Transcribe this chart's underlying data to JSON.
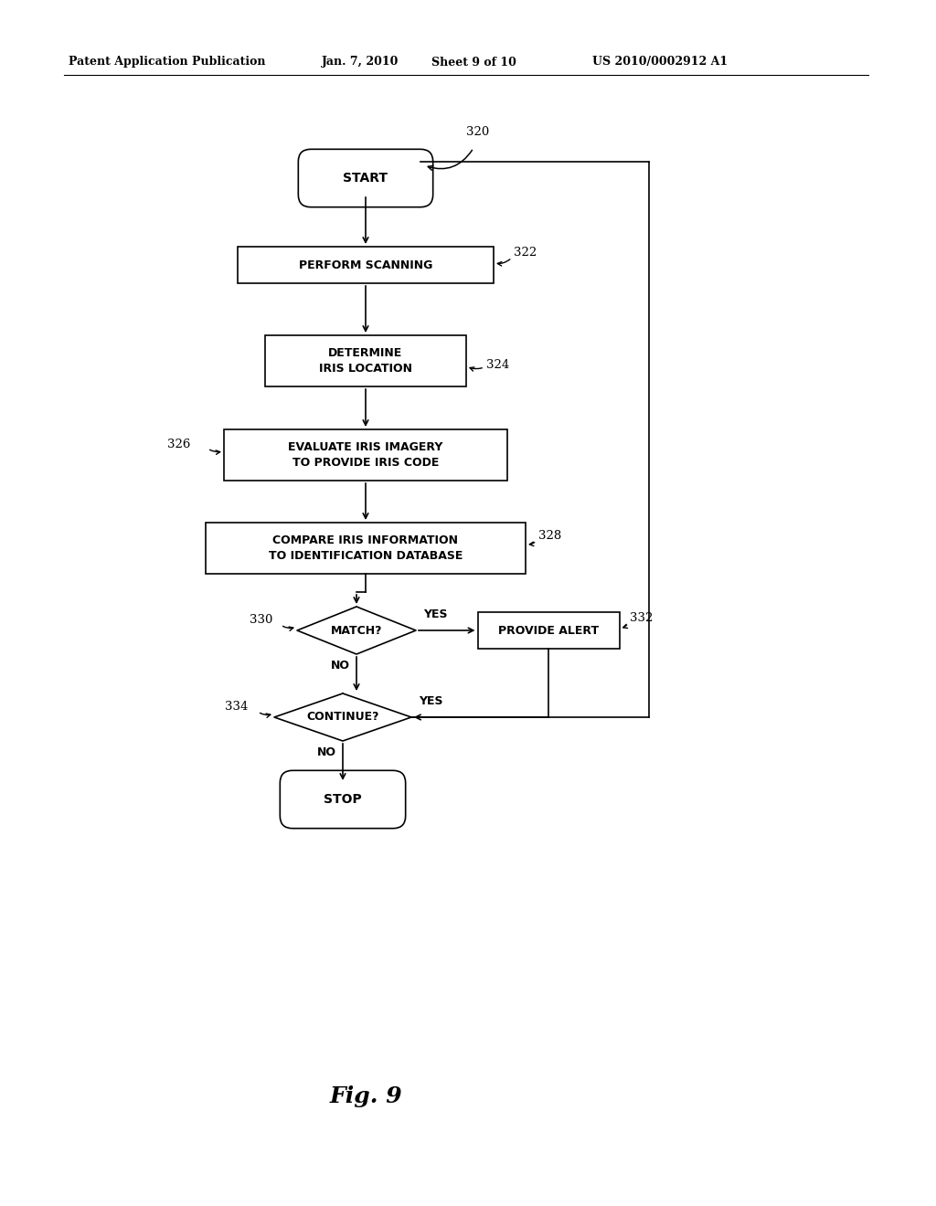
{
  "bg_color": "#ffffff",
  "header_text": "Patent Application Publication",
  "header_date": "Jan. 7, 2010",
  "header_sheet": "Sheet 9 of 10",
  "header_patent": "US 2010/0002912 A1",
  "fig_label": "Fig. 9",
  "lw": 1.2
}
